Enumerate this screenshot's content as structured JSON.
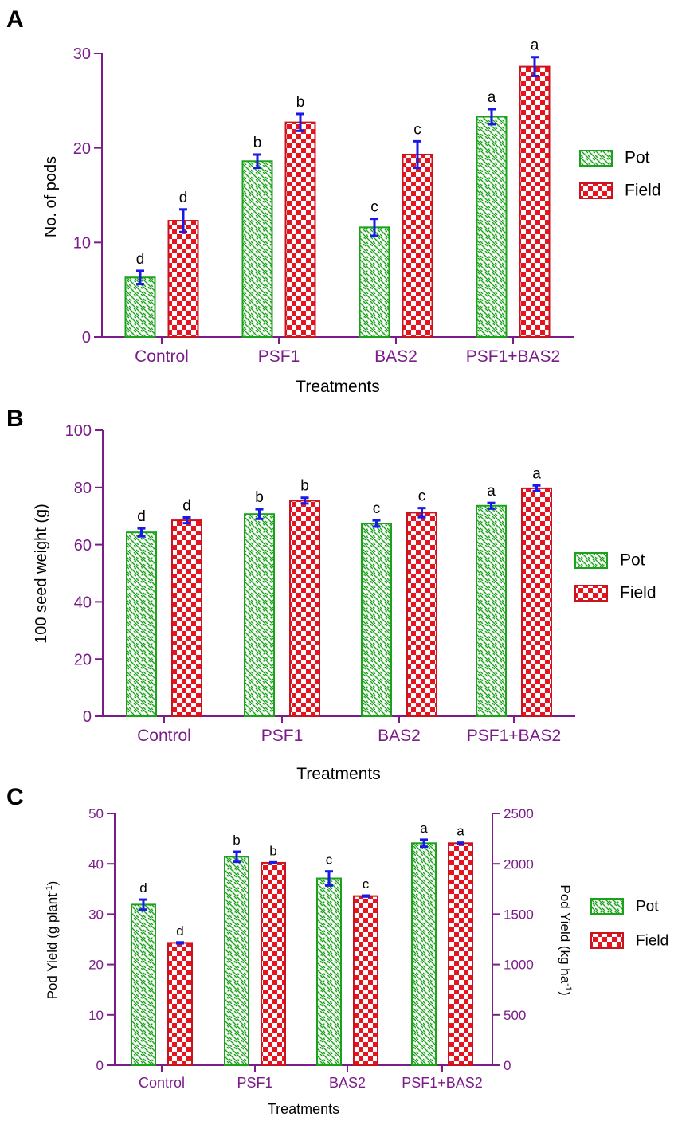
{
  "figure": {
    "colors": {
      "axis": "#7b1c8a",
      "text": "#000000",
      "pot_stroke": "#1aa31a",
      "pot_fill": "#ffffff",
      "field_fill": "#e6141e",
      "field_stroke": "#c8141e",
      "error_bar": "#1a1ae6"
    },
    "pattern_names": {
      "pot": "diagonal-hatch",
      "field": "checkerboard"
    }
  },
  "chart_data": [
    {
      "panel": "A",
      "type": "bar",
      "xlabel": "Treatments",
      "ylabel": "No. of pods",
      "categories": [
        "Control",
        "PSF1",
        "BAS2",
        "PSF1+BAS2"
      ],
      "ylim": [
        0,
        30
      ],
      "yticks": [
        "0",
        "10",
        "20",
        "30"
      ],
      "series": [
        {
          "name": "Pot",
          "values": [
            6.3,
            18.6,
            11.6,
            23.3
          ],
          "errors": [
            0.7,
            0.7,
            0.9,
            0.8
          ],
          "letters": [
            "d",
            "b",
            "c",
            "a"
          ]
        },
        {
          "name": "Field",
          "values": [
            12.3,
            22.7,
            19.3,
            28.6
          ],
          "errors": [
            1.2,
            0.9,
            1.4,
            1.0
          ],
          "letters": [
            "d",
            "b",
            "c",
            "a"
          ]
        }
      ],
      "legend": {
        "placement": "right",
        "labels": [
          "Pot",
          "Field"
        ]
      }
    },
    {
      "panel": "B",
      "type": "bar",
      "xlabel": "Treatments",
      "ylabel": "100 seed weight (g)",
      "categories": [
        "Control",
        "PSF1",
        "BAS2",
        "PSF1+BAS2"
      ],
      "ylim": [
        0,
        100
      ],
      "yticks": [
        "0",
        "20",
        "40",
        "60",
        "80",
        "100"
      ],
      "series": [
        {
          "name": "Pot",
          "values": [
            64.3,
            70.7,
            67.4,
            73.6
          ],
          "errors": [
            1.4,
            1.7,
            1.1,
            1.0
          ],
          "letters": [
            "d",
            "b",
            "c",
            "a"
          ]
        },
        {
          "name": "Field",
          "values": [
            68.5,
            75.4,
            71.2,
            79.7
          ],
          "errors": [
            1.0,
            1.0,
            1.6,
            1.0
          ],
          "letters": [
            "d",
            "b",
            "c",
            "a"
          ]
        }
      ],
      "legend": {
        "placement": "right",
        "labels": [
          "Pot",
          "Field"
        ]
      }
    },
    {
      "panel": "C",
      "type": "bar",
      "xlabel": "Treatments",
      "ylabel_left": "Pod Yield (g plant-1)",
      "ylabel_right": "Pod Yield (kg ha-1)",
      "categories": [
        "Control",
        "PSF1",
        "BAS2",
        "PSF1+BAS2"
      ],
      "ylim_left": [
        0,
        50
      ],
      "yticks_left": [
        "0",
        "10",
        "20",
        "30",
        "40",
        "50"
      ],
      "ylim_right": [
        0,
        2500
      ],
      "yticks_right": [
        "0",
        "500",
        "1000",
        "1500",
        "2000",
        "2500"
      ],
      "series": [
        {
          "name": "Pot",
          "axis": "left",
          "values": [
            31.9,
            41.4,
            37.1,
            44.1
          ],
          "errors": [
            1.0,
            1.0,
            1.4,
            0.7
          ],
          "letters": [
            "d",
            "b",
            "c",
            "a"
          ]
        },
        {
          "name": "Field",
          "axis": "right",
          "values": [
            1215,
            2010,
            1680,
            2205
          ],
          "errors": [
            5,
            5,
            5,
            5
          ],
          "letters": [
            "d",
            "b",
            "c",
            "a"
          ]
        }
      ],
      "legend": {
        "placement": "right",
        "labels": [
          "Pot",
          "Field"
        ]
      }
    }
  ]
}
